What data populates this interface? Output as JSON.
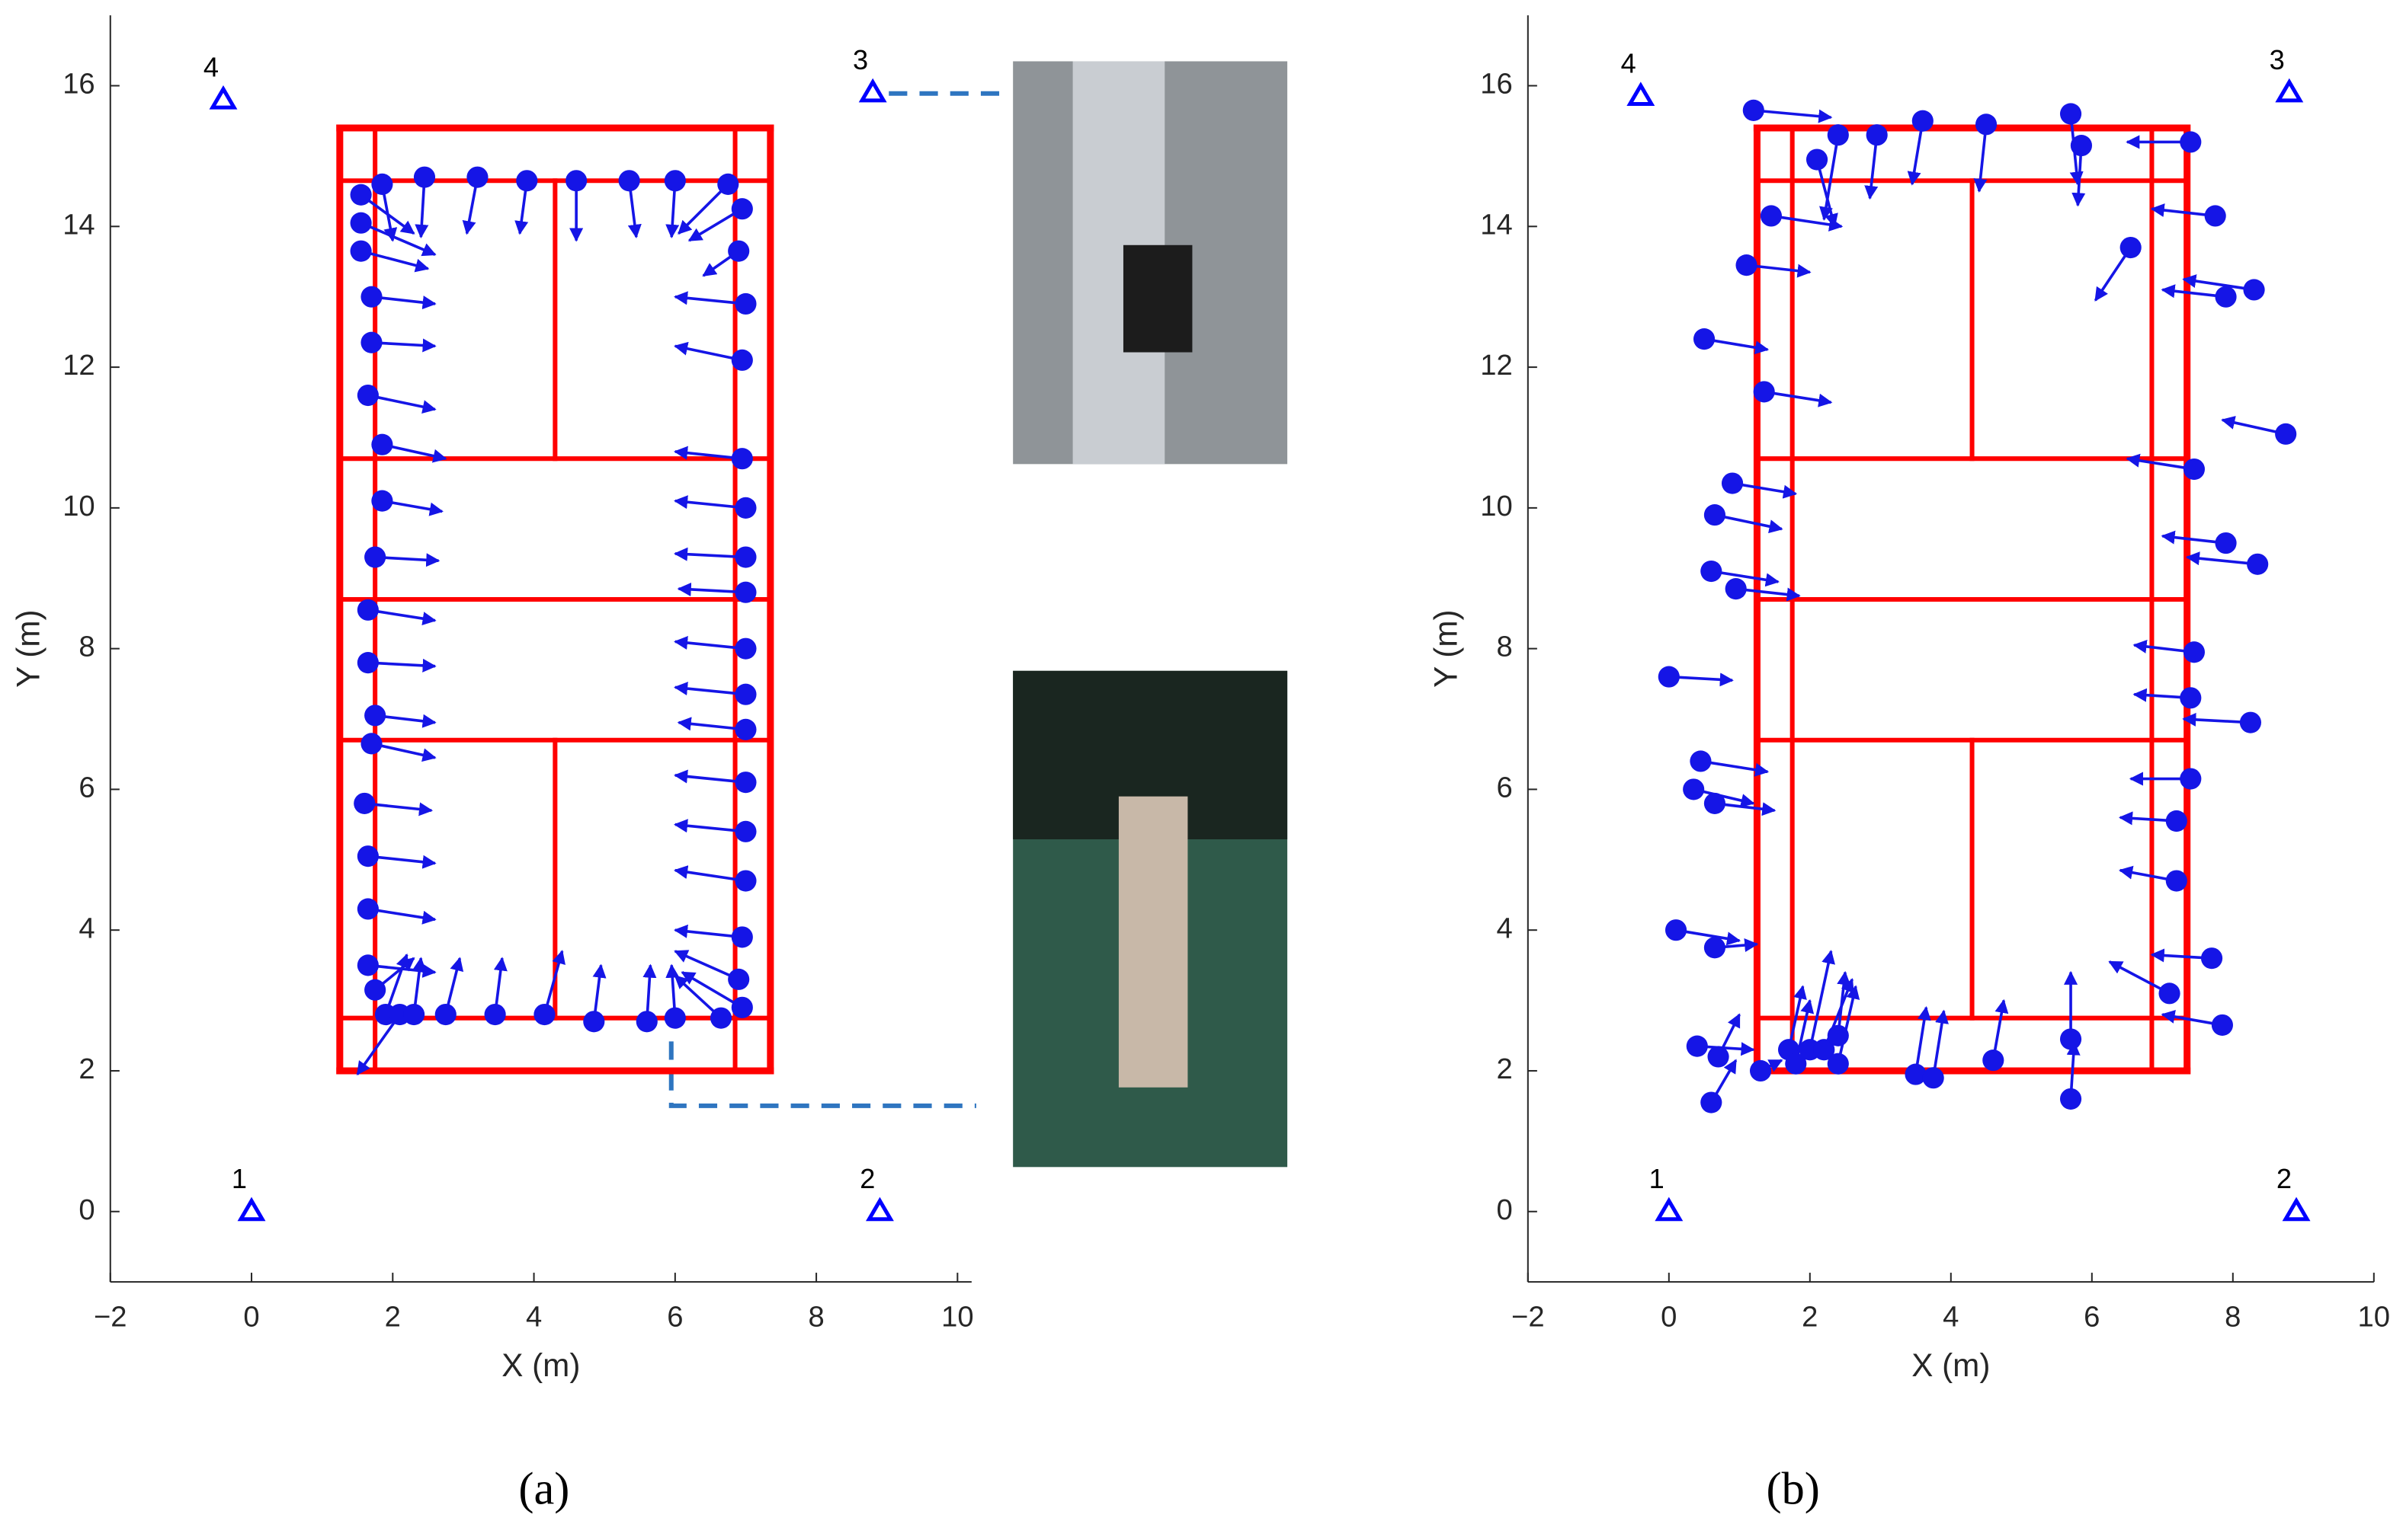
{
  "chart_data": [
    {
      "type": "quiver",
      "caption": "(a)",
      "xlabel": "X (m)",
      "ylabel": "Y (m)",
      "xlim": [
        -2,
        10.2
      ],
      "ylim": [
        -1,
        17
      ],
      "xticks": [
        {
          "value": -2,
          "label": "−2"
        },
        0,
        2,
        4,
        6,
        8,
        10
      ],
      "yticks": [
        0,
        2,
        4,
        6,
        8,
        10,
        12,
        14,
        16
      ],
      "court": {
        "color": "#ff0000",
        "lines": [
          [
            1.25,
            2,
            7.35,
            2
          ],
          [
            7.35,
            2,
            7.35,
            15.4
          ],
          [
            7.35,
            15.4,
            1.25,
            15.4
          ],
          [
            1.25,
            15.4,
            1.25,
            2
          ],
          [
            1.75,
            2,
            1.75,
            15.4
          ],
          [
            6.85,
            2,
            6.85,
            15.4
          ],
          [
            1.25,
            2.75,
            7.35,
            2.75
          ],
          [
            1.25,
            14.65,
            7.35,
            14.65
          ],
          [
            1.25,
            6.7,
            7.35,
            6.7
          ],
          [
            1.25,
            8.7,
            7.35,
            8.7
          ],
          [
            1.25,
            10.7,
            7.35,
            10.7
          ],
          [
            4.3,
            2.75,
            4.3,
            6.7
          ],
          [
            4.3,
            10.7,
            4.3,
            14.65
          ]
        ]
      },
      "anchors": {
        "color": "#0000ff",
        "labels": [
          "1",
          "2",
          "3",
          "4"
        ],
        "x": [
          0,
          8.9,
          8.8,
          -0.4
        ],
        "y": [
          0,
          0,
          15.9,
          15.8
        ]
      },
      "series": [
        {
          "color": "#1515e6",
          "x": [
            1.55,
            1.55,
            1.55,
            1.85,
            2.45,
            3.2,
            3.9,
            4.6,
            5.35,
            6.0,
            6.75,
            6.95,
            6.9,
            1.7,
            1.7,
            1.65,
            1.85,
            1.85,
            1.75,
            1.65,
            1.65,
            1.75,
            1.7,
            1.6,
            1.65,
            1.65,
            1.65,
            1.75,
            1.9,
            2.1,
            2.3,
            2.75,
            3.45,
            4.15,
            4.85,
            5.6,
            6.0,
            6.65,
            6.95,
            6.9,
            6.95,
            7.0,
            7.0,
            7.0,
            7.0,
            7.0,
            7.0,
            7.0,
            7.0,
            7.0,
            6.95,
            6.95,
            7.0
          ],
          "y": [
            14.45,
            14.05,
            13.65,
            14.6,
            14.7,
            14.7,
            14.65,
            14.65,
            14.65,
            14.65,
            14.6,
            14.25,
            13.65,
            13.0,
            12.35,
            11.6,
            10.9,
            10.1,
            9.3,
            8.55,
            7.8,
            7.05,
            6.65,
            5.8,
            5.05,
            4.3,
            3.5,
            3.15,
            2.8,
            2.8,
            2.8,
            2.8,
            2.8,
            2.8,
            2.7,
            2.7,
            2.75,
            2.75,
            2.9,
            3.3,
            3.9,
            4.7,
            5.4,
            6.1,
            6.85,
            7.35,
            8.0,
            8.8,
            9.3,
            10.0,
            10.7,
            12.1,
            12.9
          ],
          "arrow_x": [
            2.3,
            2.6,
            2.5,
            2.0,
            2.4,
            3.05,
            3.8,
            4.6,
            5.45,
            5.95,
            6.05,
            6.2,
            6.4,
            2.6,
            2.6,
            2.6,
            2.75,
            2.7,
            2.65,
            2.6,
            2.6,
            2.6,
            2.6,
            2.55,
            2.6,
            2.6,
            2.6,
            2.3,
            2.2,
            1.5,
            2.4,
            2.95,
            3.55,
            4.4,
            4.95,
            5.65,
            5.95,
            6.0,
            6.1,
            6.0,
            6.0,
            6.0,
            6.0,
            6.0,
            6.05,
            6.0,
            6.0,
            6.05,
            6.0,
            6.0,
            6.0,
            6.0,
            6.0
          ],
          "arrow_y": [
            13.9,
            13.6,
            13.4,
            13.8,
            13.85,
            13.9,
            13.9,
            13.8,
            13.85,
            13.85,
            13.9,
            13.8,
            13.3,
            12.9,
            12.3,
            11.4,
            10.7,
            9.95,
            9.25,
            8.4,
            7.75,
            6.95,
            6.45,
            5.7,
            4.95,
            4.15,
            3.4,
            3.6,
            3.65,
            1.95,
            3.6,
            3.6,
            3.6,
            3.7,
            3.5,
            3.5,
            3.5,
            3.35,
            3.4,
            3.7,
            4.0,
            4.85,
            5.5,
            6.2,
            6.95,
            7.45,
            8.1,
            8.85,
            9.35,
            10.1,
            10.8,
            12.3,
            13.0
          ]
        }
      ]
    },
    {
      "type": "quiver",
      "caption": "(b)",
      "xlabel": "X (m)",
      "ylabel": "Y (m)",
      "xlim": [
        -2,
        10
      ],
      "ylim": [
        -1,
        17
      ],
      "xticks": [
        {
          "value": -2,
          "label": "−2"
        },
        0,
        2,
        4,
        6,
        8,
        10
      ],
      "yticks": [
        0,
        2,
        4,
        6,
        8,
        10,
        12,
        14,
        16
      ],
      "court": {
        "color": "#ff0000",
        "lines": [
          [
            1.25,
            2,
            7.35,
            2
          ],
          [
            7.35,
            2,
            7.35,
            15.4
          ],
          [
            7.35,
            15.4,
            1.25,
            15.4
          ],
          [
            1.25,
            15.4,
            1.25,
            2
          ],
          [
            1.75,
            2,
            1.75,
            15.4
          ],
          [
            6.85,
            2,
            6.85,
            15.4
          ],
          [
            1.25,
            2.75,
            7.35,
            2.75
          ],
          [
            1.25,
            14.65,
            7.35,
            14.65
          ],
          [
            1.25,
            6.7,
            7.35,
            6.7
          ],
          [
            1.25,
            8.7,
            7.35,
            8.7
          ],
          [
            1.25,
            10.7,
            7.35,
            10.7
          ],
          [
            4.3,
            2.75,
            4.3,
            6.7
          ],
          [
            4.3,
            10.7,
            4.3,
            14.65
          ]
        ]
      },
      "anchors": {
        "color": "#0000ff",
        "labels": [
          "1",
          "2",
          "3",
          "4"
        ],
        "x": [
          0,
          8.9,
          8.8,
          -0.4
        ],
        "y": [
          0,
          0,
          15.9,
          15.85
        ]
      },
      "series": [
        {
          "color": "#1515e6",
          "x": [
            1.2,
            2.1,
            2.4,
            2.95,
            3.6,
            4.5,
            5.7,
            5.85,
            7.4,
            1.45,
            1.1,
            7.75,
            6.55,
            8.3,
            7.9,
            0.5,
            1.35,
            8.75,
            7.45,
            0.9,
            0.65,
            0.6,
            0.95,
            7.9,
            8.35,
            7.45,
            0.0,
            7.4,
            8.25,
            0.45,
            0.35,
            0.65,
            7.4,
            7.2,
            7.2,
            0.1,
            0.65,
            7.7,
            7.1,
            7.85,
            0.4,
            0.7,
            0.6,
            1.3,
            1.7,
            1.8,
            2.0,
            2.2,
            2.4,
            2.4,
            3.5,
            3.75,
            4.6,
            5.7,
            5.7
          ],
          "y": [
            15.65,
            14.95,
            15.3,
            15.3,
            15.5,
            15.45,
            15.6,
            15.15,
            15.2,
            14.15,
            13.45,
            14.15,
            13.7,
            13.1,
            13.0,
            12.4,
            11.65,
            11.05,
            10.55,
            10.35,
            9.9,
            9.1,
            8.85,
            9.5,
            9.2,
            7.95,
            7.6,
            7.3,
            6.95,
            6.4,
            6.0,
            5.8,
            6.15,
            5.55,
            4.7,
            4.0,
            3.75,
            3.6,
            3.1,
            2.65,
            2.35,
            2.2,
            1.55,
            2.0,
            2.3,
            2.1,
            2.3,
            2.3,
            2.1,
            2.5,
            1.95,
            1.9,
            2.15,
            1.6,
            2.45
          ],
          "arrow_x": [
            2.3,
            2.35,
            2.2,
            2.85,
            3.45,
            4.4,
            5.8,
            5.8,
            6.5,
            2.45,
            2.0,
            6.85,
            6.05,
            7.3,
            7.0,
            1.4,
            2.3,
            7.85,
            6.5,
            1.8,
            1.6,
            1.55,
            1.85,
            7.0,
            7.35,
            6.6,
            0.9,
            6.6,
            7.3,
            1.4,
            1.2,
            1.5,
            6.55,
            6.4,
            6.4,
            1.0,
            1.25,
            6.85,
            6.25,
            7.0,
            1.2,
            1.0,
            0.95,
            1.6,
            1.9,
            2.0,
            2.3,
            2.6,
            2.65,
            2.5,
            3.65,
            3.9,
            4.75,
            5.75,
            5.7
          ],
          "arrow_y": [
            15.55,
            14.0,
            14.1,
            14.4,
            14.6,
            14.5,
            14.6,
            14.3,
            15.2,
            14.0,
            13.35,
            14.25,
            12.95,
            13.25,
            13.1,
            12.25,
            11.5,
            11.25,
            10.7,
            10.2,
            9.7,
            8.95,
            8.75,
            9.6,
            9.3,
            8.05,
            7.55,
            7.35,
            7.0,
            6.25,
            5.8,
            5.7,
            6.15,
            5.6,
            4.85,
            3.85,
            3.8,
            3.65,
            3.55,
            2.8,
            2.3,
            2.8,
            2.15,
            2.15,
            3.2,
            3.0,
            3.7,
            3.3,
            3.2,
            3.4,
            2.9,
            2.85,
            3.0,
            2.4,
            3.4
          ]
        }
      ]
    }
  ]
}
